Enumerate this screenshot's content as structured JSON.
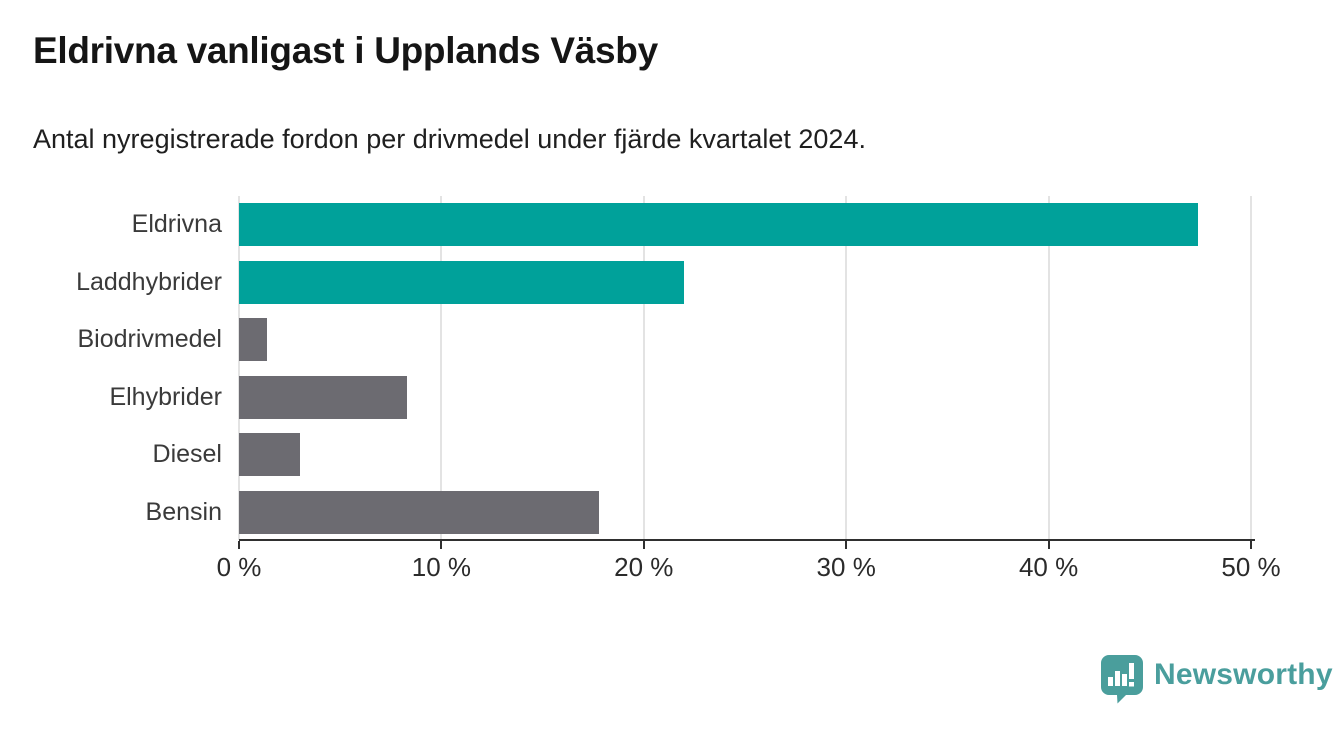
{
  "header": {
    "title": "Eldrivna vanligast i Upplands Väsby",
    "subtitle": "Antal nyregistrerade fordon per drivmedel under fjärde kvartalet 2024."
  },
  "chart_data": {
    "type": "bar",
    "orientation": "horizontal",
    "title": "Eldrivna vanligast i Upplands Väsby",
    "subtitle": "Antal nyregistrerade fordon per drivmedel under fjärde kvartalet 2024.",
    "categories": [
      "Eldrivna",
      "Laddhybrider",
      "Biodrivmedel",
      "Elhybrider",
      "Diesel",
      "Bensin"
    ],
    "values": [
      47.4,
      22.0,
      1.4,
      8.3,
      3.0,
      17.8
    ],
    "unit": "%",
    "xlim": [
      0,
      50
    ],
    "xticks": [
      0,
      10,
      20,
      30,
      40,
      50
    ],
    "xtick_labels": [
      "0 %",
      "10 %",
      "20 %",
      "30 %",
      "40 %",
      "50 %"
    ],
    "bar_colors": [
      "#00a19a",
      "#00a19a",
      "#6c6b71",
      "#6c6b71",
      "#6c6b71",
      "#6c6b71"
    ],
    "grid": true,
    "colors": {
      "highlight": "#00a19a",
      "default": "#6c6b71",
      "gridline": "#e3e3e3",
      "axis": "#2f2f2f"
    }
  },
  "branding": {
    "logo_text": "Newsworthy",
    "logo_color": "#4a9e9d",
    "logo_icon": "newsworthy-speech-bubble-chart-icon"
  }
}
